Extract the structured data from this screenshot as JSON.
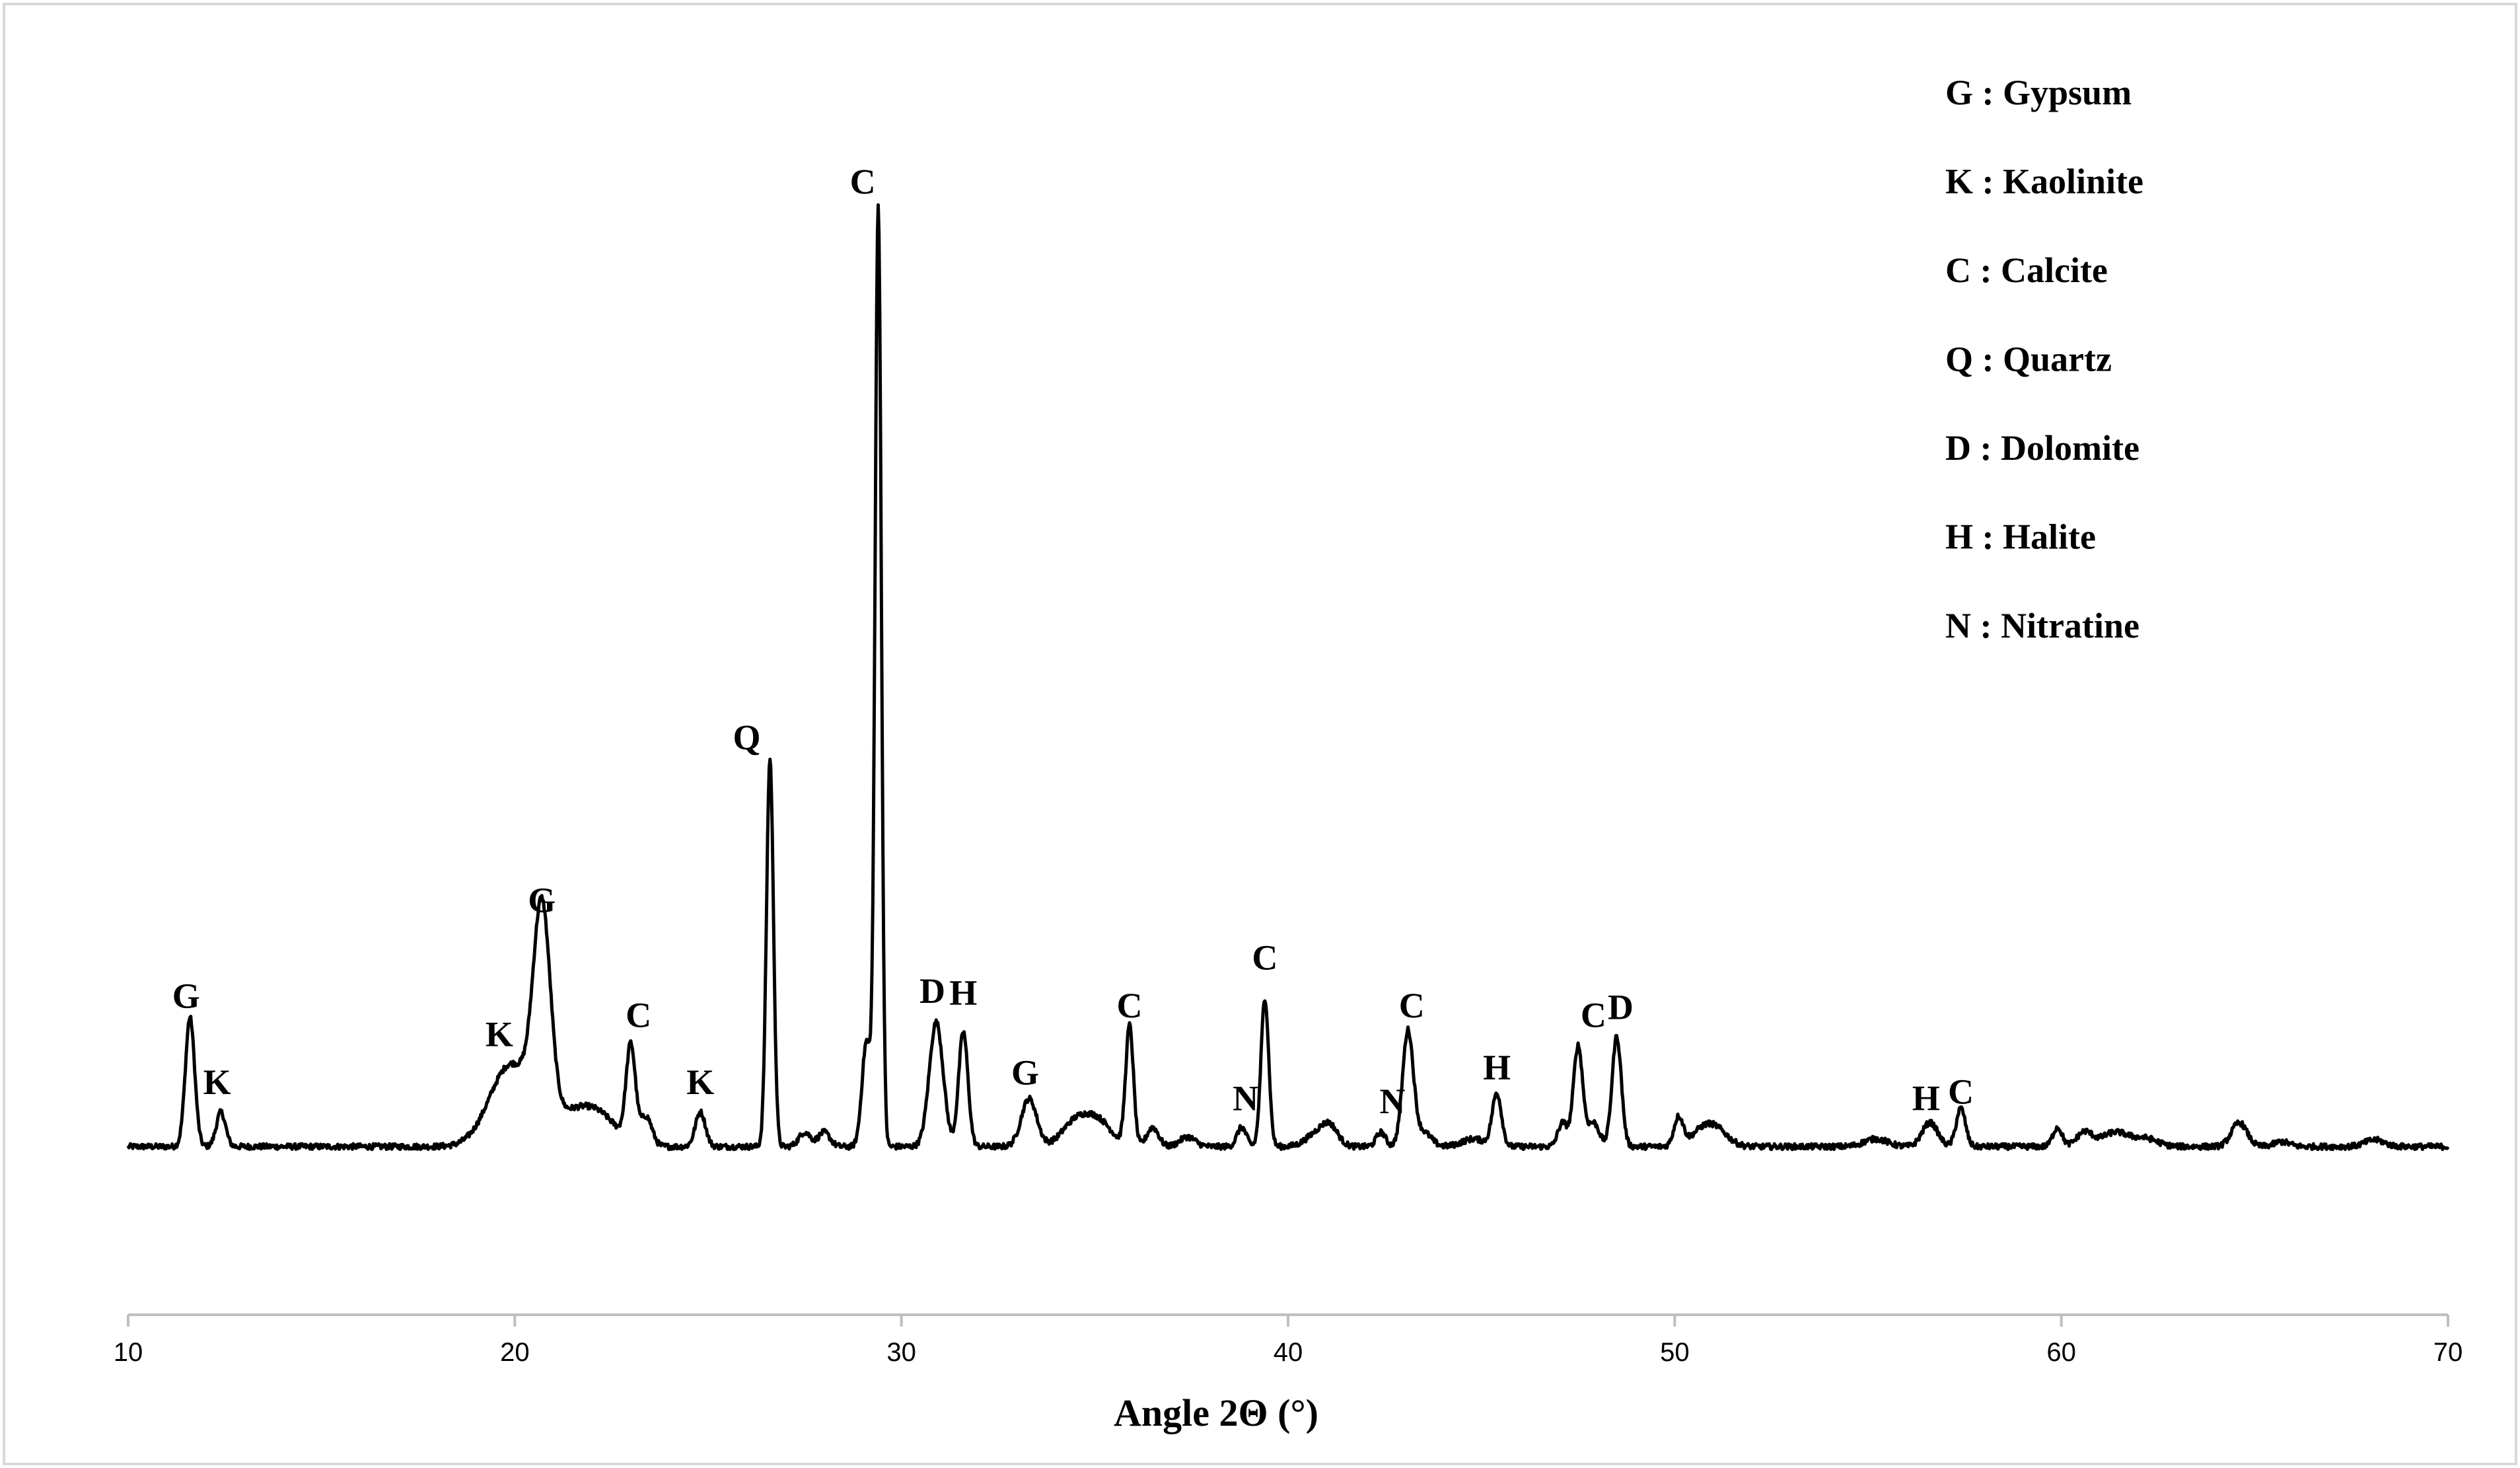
{
  "chart_data": {
    "type": "line",
    "title": "",
    "xlabel": "Angle 2Θ (°)",
    "ylabel": "",
    "xlim": [
      10,
      70
    ],
    "ylim": [
      0,
      100
    ],
    "x_ticks": [
      "10",
      "20",
      "30",
      "40",
      "50",
      "60",
      "70"
    ],
    "grid": false,
    "legend_position": "top-right",
    "legend": [
      "G : Gypsum",
      "K : Kaolinite",
      "C : Calcite",
      "Q : Quartz",
      "D : Dolomite",
      "H : Halite",
      "N : Nitratine"
    ],
    "series": [
      {
        "baseline": 1,
        "peaks": [
          [
            11.6,
            13.5,
            0.12
          ],
          [
            12.4,
            3.6,
            0.12
          ],
          [
            19.9,
            8.5,
            0.55
          ],
          [
            20.7,
            21.5,
            0.22
          ],
          [
            21.4,
            3.0,
            0.6
          ],
          [
            22.2,
            2.5,
            0.5
          ],
          [
            23.0,
            10.0,
            0.12
          ],
          [
            23.4,
            3.0,
            0.15
          ],
          [
            24.8,
            3.6,
            0.13
          ],
          [
            26.6,
            40.5,
            0.09
          ],
          [
            27.5,
            1.5,
            0.15
          ],
          [
            28.0,
            1.5,
            0.15
          ],
          [
            29.1,
            11.0,
            0.12
          ],
          [
            29.4,
            98.0,
            0.08
          ],
          [
            30.9,
            13.0,
            0.18
          ],
          [
            31.6,
            12.0,
            0.12
          ],
          [
            33.3,
            5.0,
            0.2
          ],
          [
            34.5,
            2.5,
            0.35
          ],
          [
            35.1,
            2.5,
            0.35
          ],
          [
            35.9,
            12.5,
            0.1
          ],
          [
            36.5,
            2.0,
            0.15
          ],
          [
            37.4,
            1.0,
            0.2
          ],
          [
            38.8,
            2.0,
            0.12
          ],
          [
            39.4,
            15.5,
            0.1
          ],
          [
            40.8,
            1.5,
            0.3
          ],
          [
            41.1,
            1.5,
            0.2
          ],
          [
            42.4,
            1.5,
            0.12
          ],
          [
            43.1,
            12.0,
            0.14
          ],
          [
            43.5,
            1.5,
            0.2
          ],
          [
            44.8,
            0.8,
            0.3
          ],
          [
            45.4,
            5.5,
            0.12
          ],
          [
            47.1,
            2.5,
            0.12
          ],
          [
            47.5,
            10.5,
            0.12
          ],
          [
            47.9,
            2.5,
            0.15
          ],
          [
            48.5,
            11.5,
            0.12
          ],
          [
            50.1,
            3.0,
            0.12
          ],
          [
            50.7,
            1.5,
            0.3
          ],
          [
            51.1,
            1.5,
            0.3
          ],
          [
            55.2,
            0.8,
            0.3
          ],
          [
            56.6,
            2.5,
            0.2
          ],
          [
            57.4,
            4.0,
            0.12
          ],
          [
            59.9,
            2.0,
            0.12
          ],
          [
            60.6,
            1.5,
            0.2
          ],
          [
            61.4,
            1.5,
            0.35
          ],
          [
            62.2,
            0.8,
            0.3
          ],
          [
            64.6,
            2.5,
            0.2
          ],
          [
            65.7,
            0.5,
            0.2
          ],
          [
            68.1,
            0.7,
            0.25
          ]
        ]
      }
    ],
    "peak_labels": [
      {
        "x": 11.5,
        "y": 15.5,
        "text": "G"
      },
      {
        "x": 12.3,
        "y": 6.5,
        "text": "K"
      },
      {
        "x": 19.6,
        "y": 11.5,
        "text": "K"
      },
      {
        "x": 20.7,
        "y": 25.5,
        "text": "G"
      },
      {
        "x": 23.2,
        "y": 13.5,
        "text": "C"
      },
      {
        "x": 24.8,
        "y": 6.5,
        "text": "K"
      },
      {
        "x": 26.0,
        "y": 42.5,
        "text": "Q"
      },
      {
        "x": 29.0,
        "y": 100.5,
        "text": "C"
      },
      {
        "x": 30.8,
        "y": 16.0,
        "text": "D"
      },
      {
        "x": 31.6,
        "y": 15.8,
        "text": "H"
      },
      {
        "x": 33.2,
        "y": 7.5,
        "text": "G"
      },
      {
        "x": 35.9,
        "y": 14.5,
        "text": "C"
      },
      {
        "x": 38.9,
        "y": 4.8,
        "text": "N"
      },
      {
        "x": 39.4,
        "y": 19.5,
        "text": "C"
      },
      {
        "x": 42.7,
        "y": 4.5,
        "text": "N"
      },
      {
        "x": 43.2,
        "y": 14.5,
        "text": "C"
      },
      {
        "x": 45.4,
        "y": 8.0,
        "text": "H"
      },
      {
        "x": 47.9,
        "y": 13.5,
        "text": "C"
      },
      {
        "x": 48.6,
        "y": 14.3,
        "text": "D"
      },
      {
        "x": 56.5,
        "y": 4.8,
        "text": "H"
      },
      {
        "x": 57.4,
        "y": 5.5,
        "text": "C"
      }
    ]
  }
}
